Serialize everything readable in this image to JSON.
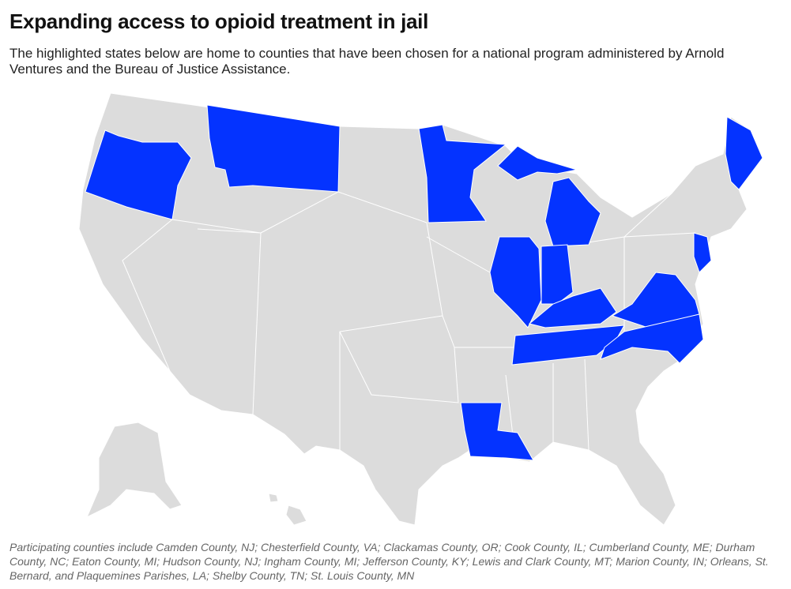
{
  "header": {
    "title": "Expanding access to opioid treatment in jail",
    "subtitle": "The highlighted states below are home to counties that have been chosen for a national program administered by Arnold Ventures and the Bureau of Justice Assistance."
  },
  "footer": {
    "note": "Participating counties include Camden County, NJ; Chesterfield County, VA; Clackamas County, OR; Cook County, IL; Cumberland County, ME; Durham County, NC; Eaton County, MI; Hudson County, NJ; Ingham County, MI; Jefferson County, KY; Lewis and Clark County, MT; Marion County, IN; Orleans, St. Bernard, and Plaquemines Parishes, LA; Shelby County, TN; St. Louis County, MN"
  }
}
